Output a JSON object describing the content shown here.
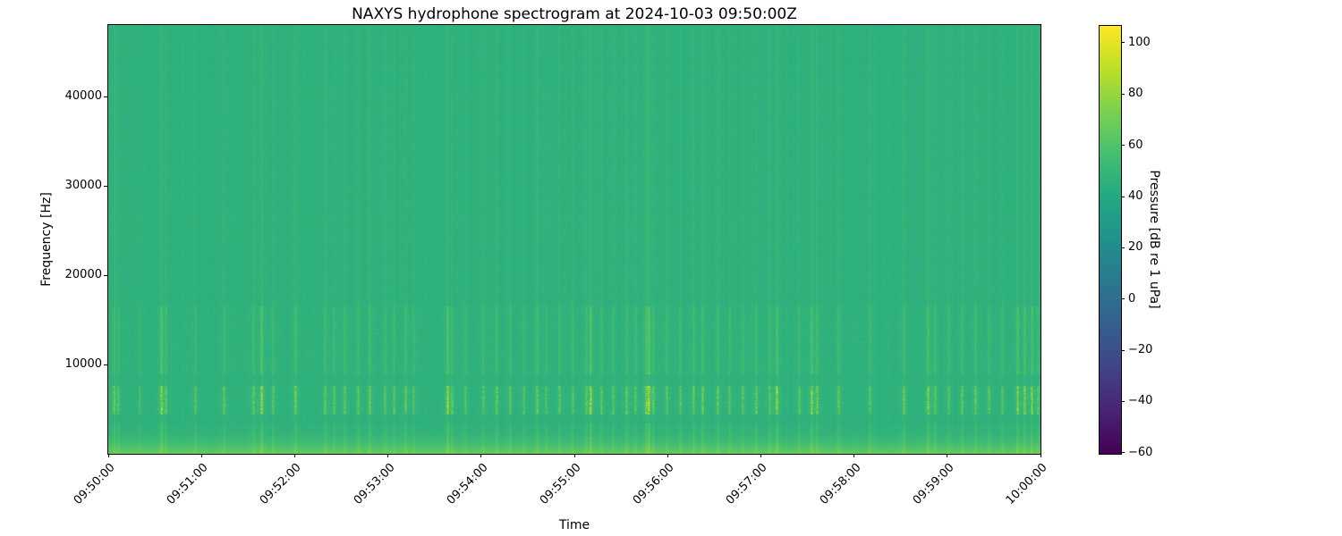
{
  "figure": {
    "background_color": "#ffffff",
    "spine_color": "#000000"
  },
  "chart_data": {
    "type": "heatmap",
    "subtype": "spectrogram",
    "title": "NAXYS hydrophone spectrogram at 2024-10-03 09:50:00Z",
    "xlabel": "Time",
    "ylabel": "Frequency [Hz]",
    "x_tick_labels": [
      "09:50:00",
      "09:51:00",
      "09:52:00",
      "09:53:00",
      "09:54:00",
      "09:55:00",
      "09:56:00",
      "09:57:00",
      "09:58:00",
      "09:59:00",
      "10:00:00"
    ],
    "x_range_seconds": [
      0,
      600
    ],
    "y_ticks_hz": [
      10000,
      20000,
      30000,
      40000
    ],
    "ylim_hz": [
      0,
      48000
    ],
    "grid": false,
    "colorbar": {
      "label": "Pressure [dB re 1 uPa]",
      "ticks": [
        100,
        80,
        60,
        40,
        20,
        0,
        -20,
        -40,
        -60
      ],
      "vmin": -60.4,
      "vmax": 106.6,
      "colormap": "viridis",
      "colormap_stops": [
        "#440154",
        "#482475",
        "#414487",
        "#355f8d",
        "#2a788e",
        "#21918c",
        "#22a884",
        "#44bf70",
        "#7ad151",
        "#bddf26",
        "#fde725"
      ]
    },
    "background_level_db": 46.3,
    "low_band": {
      "max_hz": 3500,
      "peak_boost_db": 22
    },
    "click_band_hz": [
      4500,
      7600
    ],
    "texture_band_hz": [
      9000,
      16500
    ],
    "noise_seed": 1337,
    "transients": [
      [
        3.5,
        0.55
      ],
      [
        6.3,
        0.4
      ],
      [
        20,
        0.3
      ],
      [
        34,
        0.9
      ],
      [
        36.9,
        0.5
      ],
      [
        55.9,
        0.45
      ],
      [
        74.3,
        0.5
      ],
      [
        93.3,
        0.55
      ],
      [
        98.5,
        0.95
      ],
      [
        105.9,
        0.5
      ],
      [
        120.3,
        0.6
      ],
      [
        139.3,
        0.5
      ],
      [
        145.1,
        0.45
      ],
      [
        152,
        0.55
      ],
      [
        160.6,
        0.5
      ],
      [
        168.1,
        0.6
      ],
      [
        177.9,
        0.45
      ],
      [
        183.7,
        0.5
      ],
      [
        191.2,
        0.55
      ],
      [
        196.3,
        0.4
      ],
      [
        218.2,
        0.9
      ],
      [
        221.1,
        0.5
      ],
      [
        229.7,
        0.45
      ],
      [
        241.2,
        0.5
      ],
      [
        249.9,
        0.55
      ],
      [
        258.5,
        0.5
      ],
      [
        267.2,
        0.45
      ],
      [
        275.8,
        0.6
      ],
      [
        281.5,
        0.4
      ],
      [
        290.2,
        0.5
      ],
      [
        298.8,
        0.45
      ],
      [
        307.4,
        0.5
      ],
      [
        310.3,
        0.95
      ],
      [
        317.2,
        0.5
      ],
      [
        324.7,
        0.45
      ],
      [
        333.3,
        0.55
      ],
      [
        339.1,
        0.5
      ],
      [
        346,
        0.6
      ],
      [
        347.7,
        1.0
      ],
      [
        350.6,
        0.5
      ],
      [
        359.3,
        0.45
      ],
      [
        367.9,
        0.5
      ],
      [
        376.5,
        0.55
      ],
      [
        382.3,
        0.6
      ],
      [
        392.1,
        0.5
      ],
      [
        399.6,
        0.45
      ],
      [
        408.2,
        0.5
      ],
      [
        416.8,
        0.55
      ],
      [
        425.5,
        0.5
      ],
      [
        430.1,
        0.85
      ],
      [
        444.5,
        0.5
      ],
      [
        452.5,
        0.75
      ],
      [
        456,
        0.6
      ],
      [
        469.8,
        0.5
      ],
      [
        490,
        0.45
      ],
      [
        511.9,
        0.55
      ],
      [
        527.4,
        0.8
      ],
      [
        532,
        0.5
      ],
      [
        540.7,
        0.45
      ],
      [
        549.3,
        0.5
      ],
      [
        557.9,
        0.55
      ],
      [
        566.6,
        0.5
      ],
      [
        575.2,
        0.45
      ],
      [
        585,
        0.8
      ],
      [
        589.6,
        0.7
      ],
      [
        594.2,
        0.75
      ],
      [
        598.2,
        0.5
      ]
    ]
  }
}
